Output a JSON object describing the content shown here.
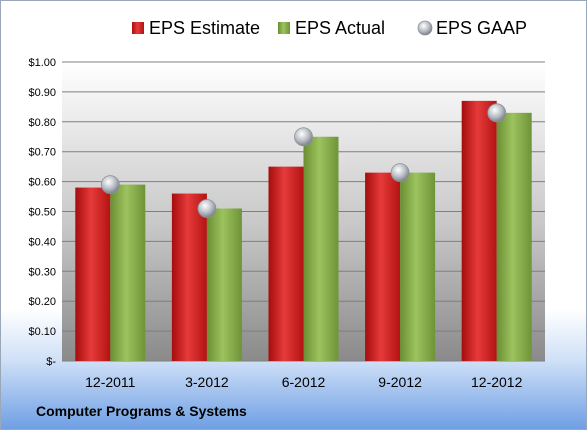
{
  "footer": {
    "company": "Computer Programs & Systems"
  },
  "colors": {
    "estimate": "#d32020",
    "actual": "#86b04a",
    "gaap": "#b9bec8"
  },
  "chart_data": {
    "type": "bar",
    "categories": [
      "12-2011",
      "3-2012",
      "6-2012",
      "9-2012",
      "12-2012"
    ],
    "series": [
      {
        "name": "EPS Estimate",
        "kind": "bar",
        "values": [
          0.58,
          0.56,
          0.65,
          0.63,
          0.87
        ]
      },
      {
        "name": "EPS Actual",
        "kind": "bar",
        "values": [
          0.59,
          0.51,
          0.75,
          0.63,
          0.83
        ]
      },
      {
        "name": "EPS GAAP",
        "kind": "marker",
        "values": [
          0.59,
          0.51,
          0.75,
          0.63,
          0.83
        ]
      }
    ],
    "yticks": [
      "$-",
      "$0.10",
      "$0.20",
      "$0.30",
      "$0.40",
      "$0.50",
      "$0.60",
      "$0.70",
      "$0.80",
      "$0.90",
      "$1.00"
    ],
    "ylim": [
      0,
      1.0
    ],
    "legend_position": "top",
    "grid": true
  }
}
